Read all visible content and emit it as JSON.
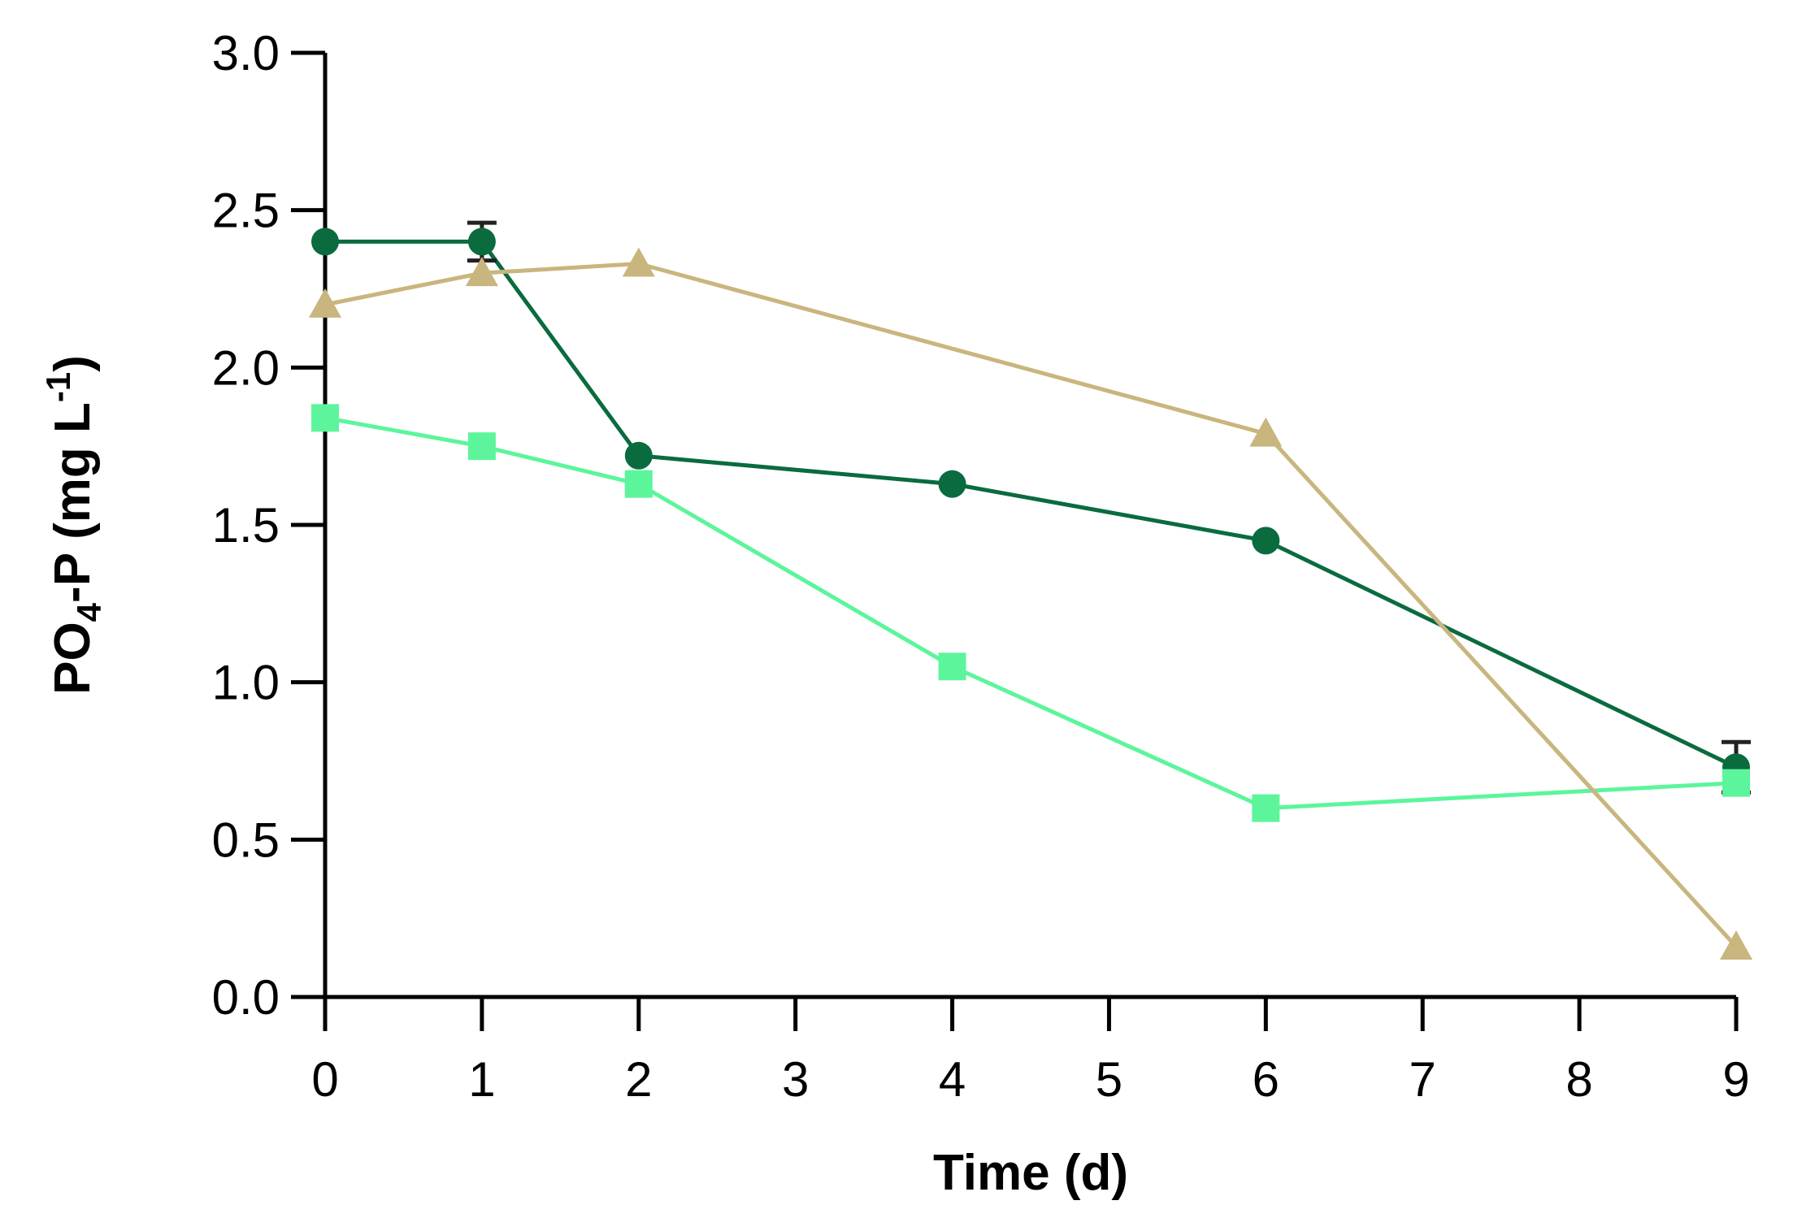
{
  "chart_data": {
    "type": "line",
    "title": "",
    "xlabel": "Time (d)",
    "ylabel": {
      "base": "PO",
      "sub": "4",
      "mid": "-P (mg L",
      "sup": "-1",
      "end": ")"
    },
    "xlim": [
      0,
      9
    ],
    "ylim": [
      0.0,
      3.0
    ],
    "xticks": [
      0,
      1,
      2,
      3,
      4,
      5,
      6,
      7,
      8,
      9
    ],
    "yticks": [
      "0.0",
      "0.5",
      "1.0",
      "1.5",
      "2.0",
      "2.5",
      "3.0"
    ],
    "grid": false,
    "legend": "none",
    "series": [
      {
        "name": "circle series",
        "marker": "circle",
        "color": "#0a6b3f",
        "x": [
          0,
          1,
          2,
          4,
          6,
          9
        ],
        "values": [
          2.4,
          2.4,
          1.72,
          1.63,
          1.45,
          0.73
        ],
        "error": [
          0,
          0.06,
          0,
          0,
          0,
          0.08
        ]
      },
      {
        "name": "square series",
        "marker": "square",
        "color": "#5cf59c",
        "x": [
          0,
          1,
          2,
          4,
          6,
          9
        ],
        "values": [
          1.84,
          1.75,
          1.63,
          1.05,
          0.6,
          0.68
        ],
        "error": [
          0,
          0,
          0,
          0,
          0,
          0
        ]
      },
      {
        "name": "triangle series",
        "marker": "triangle",
        "color": "#c9b57e",
        "x": [
          0,
          1,
          2,
          6,
          9
        ],
        "values": [
          2.2,
          2.3,
          2.33,
          1.79,
          0.16
        ],
        "error": [
          0,
          0,
          0,
          0,
          0
        ]
      }
    ]
  }
}
